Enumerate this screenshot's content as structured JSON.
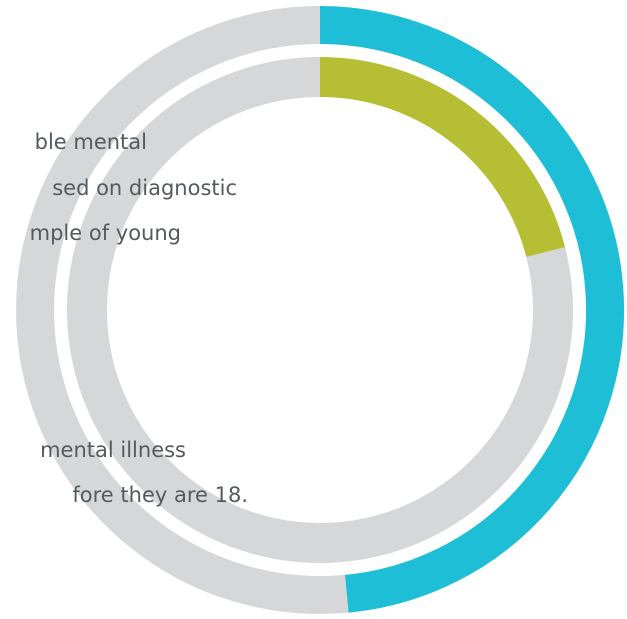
{
  "chart_data": {
    "type": "pie",
    "variant": "nested-donut",
    "title": "",
    "rings": [
      {
        "name": "",
        "highlight_color": "#1dbed6",
        "track_color": "#d6d7d9",
        "highlight_fraction": 0.485
      },
      {
        "name": "",
        "highlight_color": "#b6bf34",
        "track_color": "#d6d7d9",
        "highlight_fraction": 0.21
      }
    ],
    "captions": [
      {
        "name": "inner-ring-caption",
        "lines": [
          "ble mental",
          "sed on diagnostic",
          "mple of young"
        ]
      },
      {
        "name": "outer-ring-caption",
        "lines": [
          "mental illness",
          "fore they are 18."
        ]
      }
    ]
  }
}
